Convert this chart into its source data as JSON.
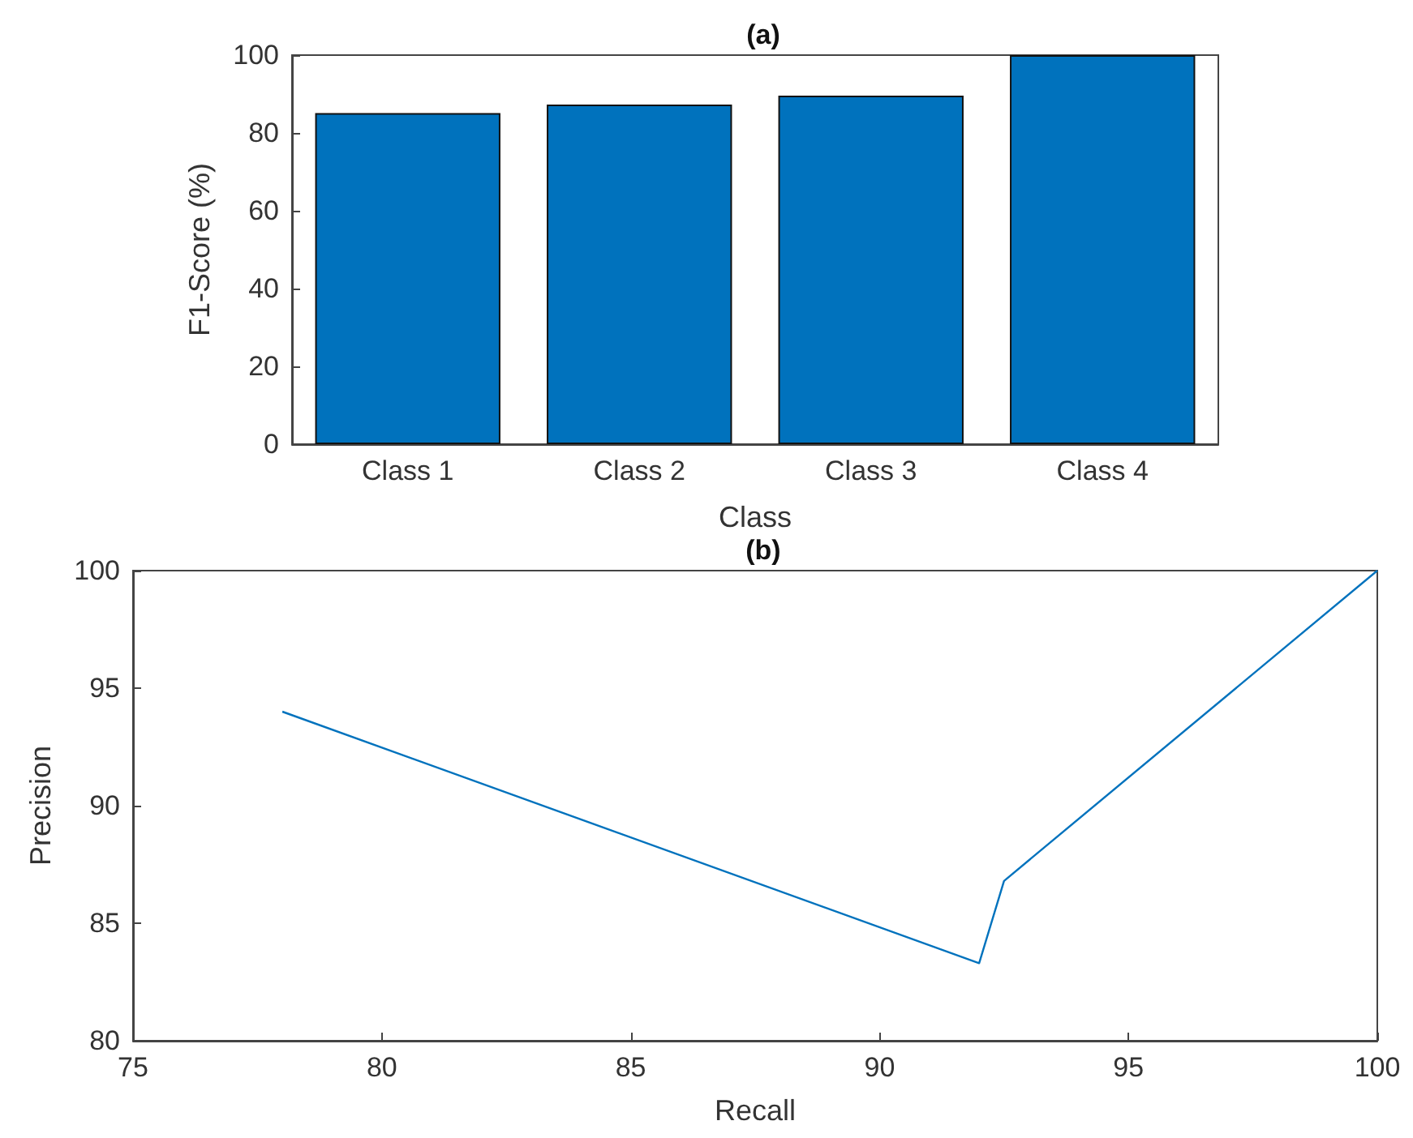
{
  "chart_data": [
    {
      "type": "bar",
      "title": "(a)",
      "xlabel": "Class",
      "ylabel": "F1-Score (%)",
      "categories": [
        "Class 1",
        "Class 2",
        "Class 3",
        "Class 4"
      ],
      "values": [
        85.1,
        87.3,
        89.6,
        100
      ],
      "color": "#0072bd",
      "ylim": [
        0,
        100
      ],
      "yticks": [
        0,
        20,
        40,
        60,
        80,
        100
      ],
      "grid": false
    },
    {
      "type": "line",
      "title": "(b)",
      "xlabel": "Recall",
      "ylabel": "Precision",
      "x": [
        78,
        92,
        92.5,
        100
      ],
      "values": [
        94,
        83.3,
        86.8,
        100
      ],
      "color": "#0072bd",
      "xlim": [
        75,
        100
      ],
      "xticks": [
        75,
        80,
        85,
        90,
        95,
        100
      ],
      "ylim": [
        80,
        100
      ],
      "yticks": [
        80,
        85,
        90,
        95,
        100
      ],
      "grid": false
    }
  ]
}
